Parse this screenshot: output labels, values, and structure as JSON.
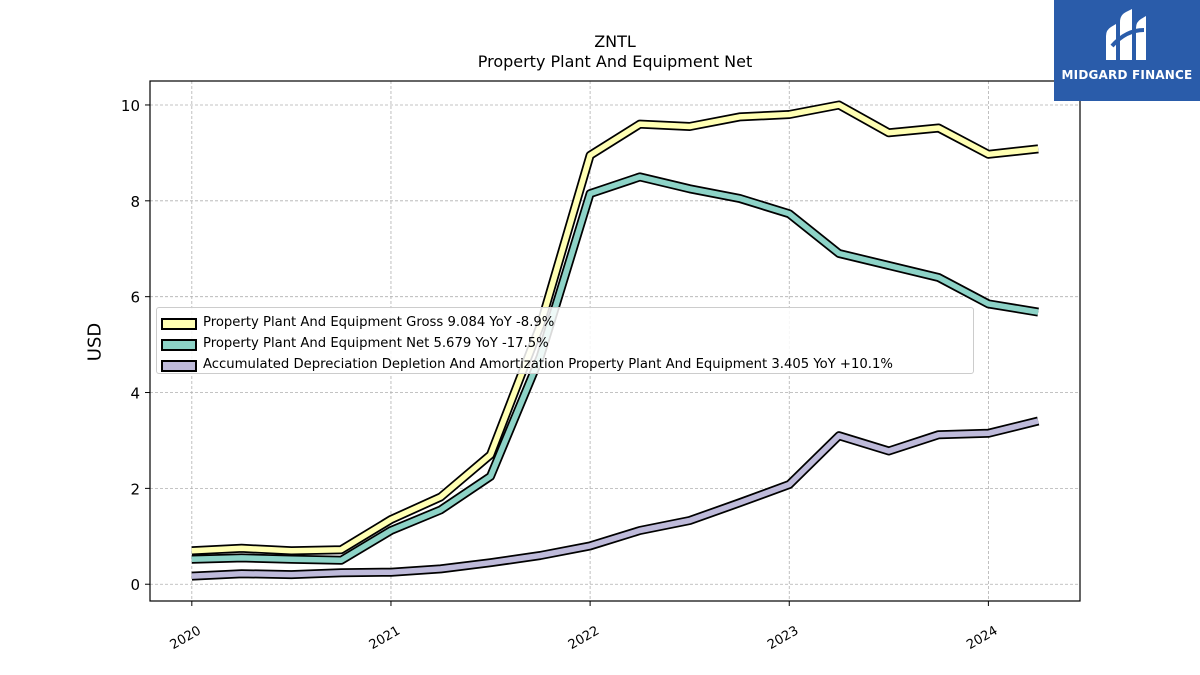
{
  "header": {
    "ticker": "ZNTL",
    "title": "Property Plant And Equipment Net"
  },
  "logo": {
    "text": "MIDGARD FINANCE",
    "background": "#2a5caa"
  },
  "legend": {
    "items": [
      {
        "label": "Property Plant And Equipment Gross  9.084 YoY -8.9%",
        "color": "#ffffb3"
      },
      {
        "label": "Property Plant And Equipment Net  5.679 YoY -17.5%",
        "color": "#8dd3c7"
      },
      {
        "label": "Accumulated Depreciation Depletion And Amortization Property Plant And Equipment  3.405 YoY +10.1%",
        "color": "#bebada"
      }
    ]
  },
  "chart_data": {
    "type": "line",
    "title": "ZNTL",
    "subtitle": "Property Plant And Equipment Net",
    "ylabel": "USD",
    "xlabel": "",
    "ylim": [
      -0.35,
      10.5
    ],
    "yticks": [
      0,
      2,
      4,
      6,
      8,
      10
    ],
    "xlim": [
      2019.79,
      2024.46
    ],
    "xticks": [
      {
        "value": 2020,
        "label": "2020"
      },
      {
        "value": 2021,
        "label": "2021"
      },
      {
        "value": 2022,
        "label": "2022"
      },
      {
        "value": 2023,
        "label": "2023"
      },
      {
        "value": 2024,
        "label": "2024"
      }
    ],
    "grid": true,
    "legend_position": "center-left",
    "x": [
      2020.0,
      2020.25,
      2020.5,
      2020.75,
      2021.0,
      2021.25,
      2021.5,
      2021.75,
      2022.0,
      2022.25,
      2022.5,
      2022.75,
      2023.0,
      2023.25,
      2023.5,
      2023.75,
      2024.0,
      2024.25
    ],
    "series": [
      {
        "name": "Property Plant And Equipment Gross",
        "color": "#ffffb3",
        "values": [
          0.7,
          0.75,
          0.7,
          0.72,
          1.35,
          1.82,
          2.7,
          5.4,
          8.95,
          9.6,
          9.55,
          9.75,
          9.8,
          10.0,
          9.42,
          9.52,
          8.97,
          9.084
        ]
      },
      {
        "name": "Property Plant And Equipment Net",
        "color": "#8dd3c7",
        "values": [
          0.52,
          0.55,
          0.52,
          0.5,
          1.12,
          1.55,
          2.25,
          4.75,
          8.15,
          8.5,
          8.25,
          8.05,
          7.73,
          6.9,
          6.65,
          6.4,
          5.85,
          5.679
        ]
      },
      {
        "name": "Accumulated Depreciation Depletion And Amortization Property Plant And Equipment",
        "color": "#bebada",
        "values": [
          0.17,
          0.22,
          0.2,
          0.24,
          0.25,
          0.32,
          0.45,
          0.6,
          0.8,
          1.12,
          1.33,
          1.7,
          2.08,
          3.1,
          2.78,
          3.12,
          3.15,
          3.405
        ]
      }
    ]
  }
}
